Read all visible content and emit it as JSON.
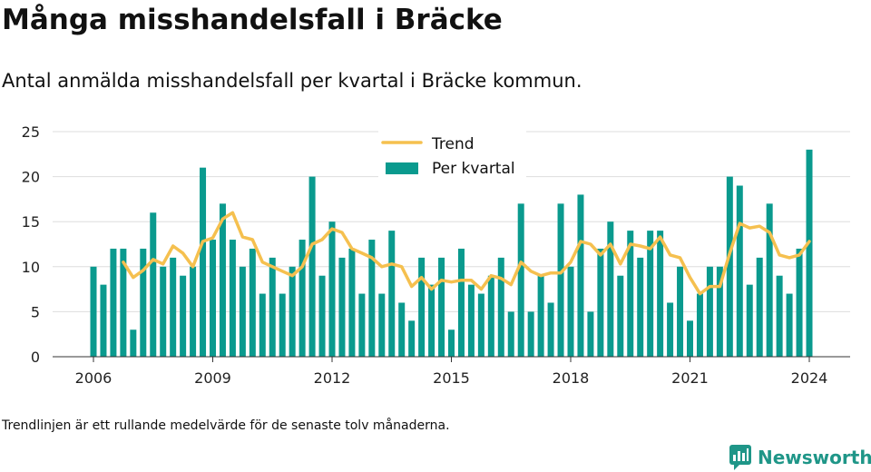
{
  "header": {
    "title": "Många misshandelsfall i Bräcke",
    "subtitle": "Antal anmälda misshandelsfall per kvartal i Bräcke kommun."
  },
  "footer": {
    "note": "Trendlinjen är ett rullande medelvärde för de senaste tolv månaderna.",
    "brand": "Newsworthy"
  },
  "colors": {
    "bar": "#0a9a8e",
    "trend": "#f5c04f",
    "grid": "#dddddd",
    "axis": "#333333",
    "brand": "#1f9688"
  },
  "chart_data": {
    "type": "bar",
    "title": "Många misshandelsfall i Bräcke",
    "subtitle": "Antal anmälda misshandelsfall per kvartal i Bräcke kommun.",
    "ylim": [
      0,
      25
    ],
    "yticks": [
      0,
      5,
      10,
      15,
      20,
      25
    ],
    "xticks": [
      "2006",
      "2009",
      "2012",
      "2015",
      "2018",
      "2021",
      "2024"
    ],
    "grid": true,
    "legend": "top-center",
    "x_start": "2006 Q1",
    "series": [
      {
        "name": "Per kvartal",
        "type": "bar",
        "values": [
          10,
          8,
          12,
          12,
          3,
          12,
          16,
          10,
          11,
          9,
          10,
          21,
          13,
          17,
          13,
          10,
          12,
          7,
          11,
          7,
          10,
          13,
          20,
          9,
          15,
          11,
          12,
          7,
          13,
          7,
          14,
          6,
          4,
          11,
          8,
          11,
          3,
          12,
          8,
          7,
          9,
          11,
          5,
          17,
          5,
          9,
          6,
          17,
          10,
          18,
          5,
          12,
          15,
          9,
          14,
          11,
          14,
          14,
          6,
          10,
          4,
          7,
          10,
          10,
          20,
          19,
          8,
          11,
          17,
          9,
          7,
          12,
          23
        ]
      },
      {
        "name": "Trend",
        "type": "line",
        "values": [
          null,
          null,
          null,
          10.5,
          8.8,
          9.6,
          10.8,
          10.3,
          12.3,
          11.5,
          10.0,
          12.8,
          13.2,
          15.3,
          16.0,
          13.3,
          13.0,
          10.5,
          10.0,
          9.5,
          9.0,
          10.0,
          12.5,
          13.0,
          14.2,
          13.8,
          12.0,
          11.5,
          11.0,
          10.0,
          10.3,
          10.0,
          7.8,
          8.8,
          7.5,
          8.5,
          8.3,
          8.5,
          8.5,
          7.5,
          9.0,
          8.7,
          8.0,
          10.5,
          9.5,
          9.0,
          9.3,
          9.3,
          10.5,
          12.8,
          12.5,
          11.3,
          12.5,
          10.3,
          12.5,
          12.3,
          12.0,
          13.3,
          11.3,
          11.0,
          8.8,
          7.0,
          7.8,
          7.8,
          11.5,
          14.8,
          14.3,
          14.5,
          13.8,
          11.3,
          11.0,
          11.3,
          12.8
        ]
      }
    ]
  }
}
